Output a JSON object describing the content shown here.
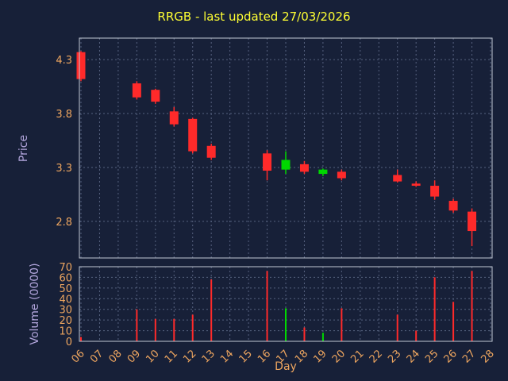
{
  "chart_data": {
    "type": "candlestick_with_volume",
    "title": "RRGB - last updated 27/03/2026",
    "xlabel": "Day",
    "ylabel": "Price",
    "volume_label": "Volume (0000)",
    "categories": [
      "06",
      "07",
      "08",
      "09",
      "10",
      "11",
      "12",
      "13",
      "14",
      "15",
      "16",
      "17",
      "18",
      "19",
      "20",
      "21",
      "22",
      "23",
      "24",
      "25",
      "26",
      "27",
      "28"
    ],
    "price_ticks": [
      4.3,
      3.8,
      3.3,
      2.8
    ],
    "price_axis_range": [
      2.46,
      4.5
    ],
    "volume_ticks": [
      0,
      10,
      20,
      30,
      40,
      50,
      60,
      70
    ],
    "volume_axis_range": [
      0,
      70
    ],
    "grid": true,
    "colors": {
      "background": "#172038",
      "grid": "#56627f",
      "border": "#c2c8d4",
      "up": "#00d800",
      "down": "#ff2a2a",
      "title": "#ffff33",
      "tick_label": "#eda55f",
      "axis_label": "#b3a6dd"
    },
    "candles": [
      {
        "day": "06",
        "open": 4.37,
        "high": 4.38,
        "low": 4.1,
        "close": 4.12,
        "direction": "down",
        "volume": 4
      },
      {
        "day": "09",
        "open": 4.08,
        "high": 4.1,
        "low": 3.93,
        "close": 3.95,
        "direction": "down",
        "volume": 30
      },
      {
        "day": "10",
        "open": 4.02,
        "high": 4.03,
        "low": 3.89,
        "close": 3.91,
        "direction": "down",
        "volume": 21
      },
      {
        "day": "11",
        "open": 3.82,
        "high": 3.86,
        "low": 3.68,
        "close": 3.7,
        "direction": "down",
        "volume": 21
      },
      {
        "day": "12",
        "open": 3.75,
        "high": 3.76,
        "low": 3.43,
        "close": 3.45,
        "direction": "down",
        "volume": 25
      },
      {
        "day": "13",
        "open": 3.5,
        "high": 3.52,
        "low": 3.37,
        "close": 3.39,
        "direction": "down",
        "volume": 58
      },
      {
        "day": "16",
        "open": 3.43,
        "high": 3.46,
        "low": 3.18,
        "close": 3.27,
        "direction": "down",
        "volume": 66
      },
      {
        "day": "17",
        "open": 3.28,
        "high": 3.45,
        "low": 3.24,
        "close": 3.37,
        "direction": "up",
        "volume": 31
      },
      {
        "day": "18",
        "open": 3.33,
        "high": 3.36,
        "low": 3.24,
        "close": 3.26,
        "direction": "down",
        "volume": 13
      },
      {
        "day": "19",
        "open": 3.24,
        "high": 3.29,
        "low": 3.22,
        "close": 3.28,
        "direction": "up",
        "volume": 8
      },
      {
        "day": "20",
        "open": 3.26,
        "high": 3.28,
        "low": 3.18,
        "close": 3.2,
        "direction": "down",
        "volume": 31
      },
      {
        "day": "23",
        "open": 3.23,
        "high": 3.28,
        "low": 3.16,
        "close": 3.17,
        "direction": "down",
        "volume": 25
      },
      {
        "day": "24",
        "open": 3.15,
        "high": 3.17,
        "low": 3.12,
        "close": 3.13,
        "direction": "down",
        "volume": 10
      },
      {
        "day": "25",
        "open": 3.13,
        "high": 3.18,
        "low": 3.0,
        "close": 3.03,
        "direction": "down",
        "volume": 60
      },
      {
        "day": "26",
        "open": 2.99,
        "high": 3.01,
        "low": 2.88,
        "close": 2.9,
        "direction": "down",
        "volume": 37
      },
      {
        "day": "27",
        "open": 2.89,
        "high": 2.92,
        "low": 2.57,
        "close": 2.71,
        "direction": "down",
        "volume": 66
      }
    ]
  }
}
